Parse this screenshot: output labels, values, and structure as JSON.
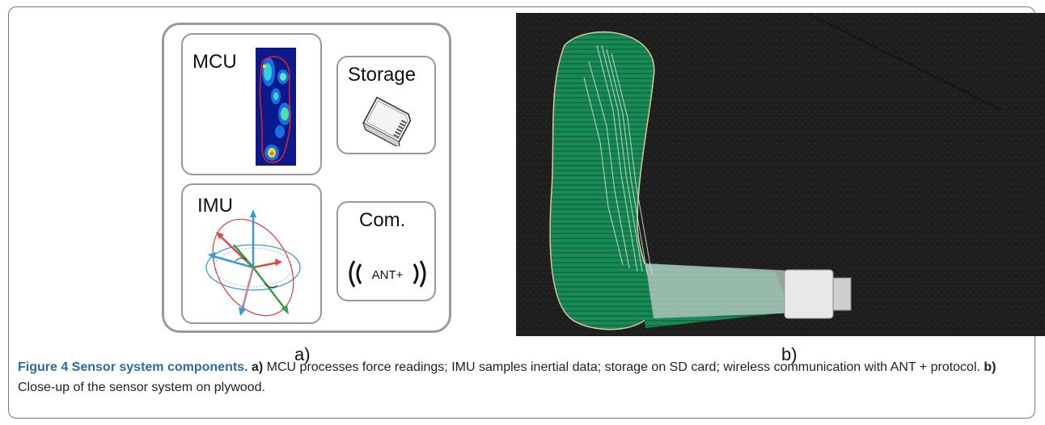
{
  "panel_a": {
    "mcu_label": "MCU",
    "storage_label": "Storage",
    "imu_label": "IMU",
    "com_label": "Com.",
    "ant_label": "ANT+",
    "panel_letter": "a)"
  },
  "panel_b": {
    "panel_letter": "b)"
  },
  "caption": {
    "figure_label": "Figure 4 Sensor system components.",
    "ref_a": "a)",
    "text_a": " MCU processes force readings; IMU samples inertial data; storage on SD card; wireless communication with ANT + protocol. ",
    "ref_b": "b)",
    "text_b": " Close-up of the sensor system on plywood."
  },
  "colors": {
    "heatmap_background": "#0a1a8c",
    "foot_outline": "#e02020",
    "imu_blue": "#3a9ad9",
    "imu_red": "#e04848",
    "imu_green": "#38a048",
    "pcb_green": "#1a8a55",
    "caption_figure_label": "#2b6aa8"
  },
  "icons": [
    "sd-card-icon",
    "wireless-signal-icon",
    "pressure-heatmap-icon",
    "axes-rotation-icon"
  ]
}
